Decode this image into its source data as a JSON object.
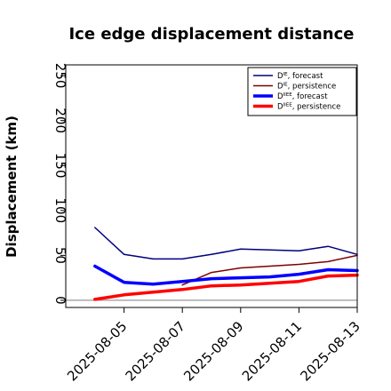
{
  "chart_data": {
    "type": "line",
    "title": "Ice edge displacement distance",
    "xlabel": "",
    "ylabel": "Displacement (km)",
    "x": [
      "2025-08-04",
      "2025-08-05",
      "2025-08-06",
      "2025-08-07",
      "2025-08-08",
      "2025-08-09",
      "2025-08-10",
      "2025-08-11",
      "2025-08-12",
      "2025-08-13"
    ],
    "xticks": [
      "2025-08-05",
      "2025-08-07",
      "2025-08-09",
      "2025-08-11",
      "2025-08-13"
    ],
    "highlight_tick": "2025-08-05",
    "highlight_color": "#228B22",
    "yticks": [
      0,
      50,
      100,
      150,
      200,
      250
    ],
    "ylim": [
      -8,
      262
    ],
    "xlim": [
      "2025-08-03",
      "2025-08-13"
    ],
    "grid": false,
    "legend_position": "top-right",
    "reference_line": {
      "value": 0,
      "color": "#999999"
    },
    "series": [
      {
        "name": "D^IE, forecast",
        "color": "#000080",
        "width": 1.5,
        "values": [
          81,
          51,
          46,
          46,
          51,
          57,
          56,
          55,
          60,
          51
        ]
      },
      {
        "name": "D^IE, persistence",
        "color": "#800000",
        "width": 1.5,
        "values": [
          null,
          null,
          null,
          17,
          31,
          36,
          38,
          40,
          43,
          50
        ]
      },
      {
        "name": "D^IIEE, forecast",
        "color": "#0000FF",
        "width": 3.5,
        "values": [
          38,
          20,
          18,
          21,
          24,
          25,
          26,
          29,
          34,
          33
        ]
      },
      {
        "name": "D^IIEE, persistence",
        "color": "#FF0000",
        "width": 3.5,
        "values": [
          1,
          6,
          9,
          12,
          16,
          17,
          19,
          21,
          27,
          28
        ]
      }
    ],
    "legend_items": [
      {
        "prefix": "D",
        "sup": "IE",
        "suffix": ", forecast"
      },
      {
        "prefix": "D",
        "sup": "IE",
        "suffix": ", persistence"
      },
      {
        "prefix": "D",
        "sup": "IIEE",
        "suffix": ", forecast"
      },
      {
        "prefix": "D",
        "sup": "IIEE",
        "suffix": ", persistence"
      }
    ]
  }
}
